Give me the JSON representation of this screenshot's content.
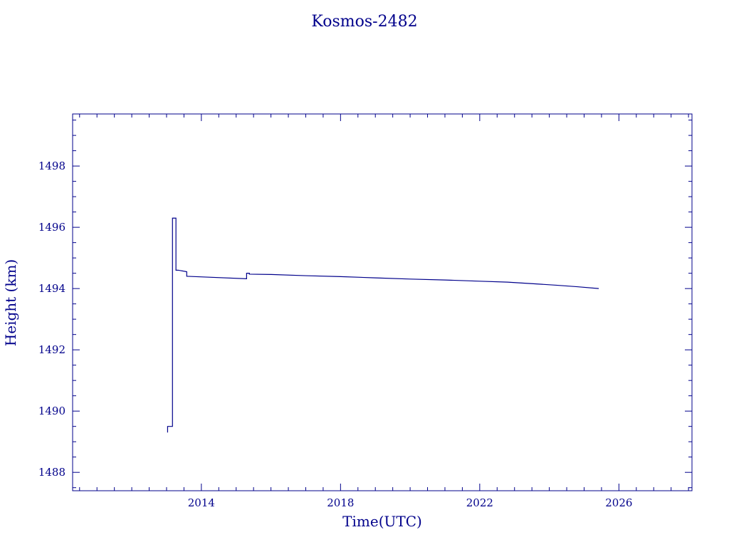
{
  "chart_data": {
    "type": "line",
    "title": "Kosmos-2482",
    "xlabel": "Time(UTC)",
    "ylabel": "Height (km)",
    "xlim": [
      2010.3,
      2028.1
    ],
    "ylim": [
      1487.4,
      1499.7
    ],
    "x_major_ticks": [
      2014,
      2018,
      2022,
      2026
    ],
    "x_tick_labels": [
      "2014",
      "2018",
      "2022",
      "2026"
    ],
    "y_major_ticks": [
      1488,
      1490,
      1492,
      1494,
      1496,
      1498
    ],
    "y_tick_labels": [
      "1488",
      "1490",
      "1492",
      "1494",
      "1496",
      "1498"
    ],
    "grid": false,
    "legend": "none",
    "color": "#00008b",
    "series": [
      {
        "x": [
          2013.03,
          2013.03,
          2013.08,
          2013.08,
          2013.17,
          2013.17,
          2013.27,
          2013.27,
          2013.33,
          2013.33,
          2013.58,
          2013.58,
          2013.6,
          2015.3,
          2015.3,
          2015.38,
          2015.38,
          2016.0,
          2017.0,
          2018.0,
          2019.0,
          2020.0,
          2021.0,
          2022.0,
          2022.8,
          2023.5,
          2024.2,
          2024.8,
          2025.42
        ],
        "y": [
          1489.3,
          1489.5,
          1489.5,
          1489.5,
          1489.5,
          1496.3,
          1496.3,
          1494.6,
          1494.6,
          1494.6,
          1494.55,
          1494.4,
          1494.4,
          1494.32,
          1494.5,
          1494.5,
          1494.47,
          1494.46,
          1494.42,
          1494.39,
          1494.35,
          1494.31,
          1494.28,
          1494.24,
          1494.21,
          1494.16,
          1494.11,
          1494.06,
          1494.0
        ]
      }
    ]
  }
}
